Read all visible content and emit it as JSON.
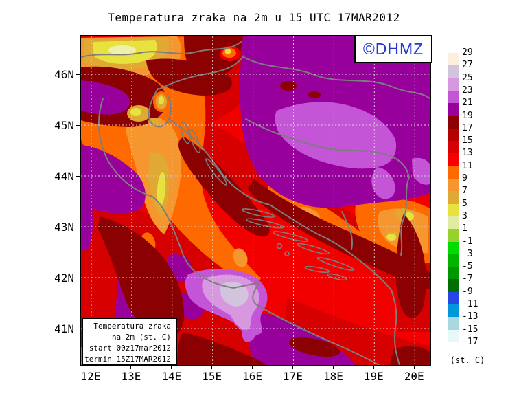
{
  "title": "Temperatura zraka na 2m u 15 UTC 17MAR2012",
  "logo": {
    "text": "©DHMZ",
    "color": "#2438d2"
  },
  "info_box": {
    "lines": [
      "Temperatura zraka",
      "na 2m (st. C)",
      "start 00z17mar2012",
      "termin 15Z17MAR2012"
    ]
  },
  "axes": {
    "x_ticks": [
      "12E",
      "13E",
      "14E",
      "15E",
      "16E",
      "17E",
      "18E",
      "19E",
      "20E"
    ],
    "y_ticks": [
      "46N",
      "45N",
      "44N",
      "43N",
      "42N",
      "41N"
    ]
  },
  "legend": {
    "unit_label": "(st. C)",
    "tick_labels": [
      "29",
      "27",
      "25",
      "23",
      "21",
      "19",
      "17",
      "15",
      "13",
      "11",
      "9",
      "7",
      "5",
      "3",
      "1",
      "-1",
      "-3",
      "-5",
      "-7",
      "-9",
      "-11",
      "-13",
      "-15",
      "-17"
    ],
    "colors": [
      "#fdeedd",
      "#d2c4dc",
      "#d898e0",
      "#c455d6",
      "#98009c",
      "#8b0000",
      "#b40000",
      "#d80000",
      "#f70000",
      "#ff6a00",
      "#f5962e",
      "#dfa933",
      "#e8e23e",
      "#e0eca2",
      "#96d22e",
      "#00dc00",
      "#00b400",
      "#009600",
      "#006e00",
      "#2846e6",
      "#0096dc",
      "#aad8e0",
      "#e6f8f8"
    ]
  },
  "map_colors": {
    "sea_red": "#f20000",
    "mid_red": "#d60000",
    "maroon": "#8b0000",
    "orange": "#ff6a00",
    "light_orange": "#f5962e",
    "ochre": "#dfa933",
    "yellow": "#e8e23e",
    "pale_yellow": "#eef0b0",
    "purple": "#98009c",
    "orchid": "#c455d6",
    "light_orchid": "#d898e0",
    "pale_lavender": "#d2c4dc",
    "coast_gray": "#7d7d7d",
    "grid_gray": "#d6d6d6"
  }
}
